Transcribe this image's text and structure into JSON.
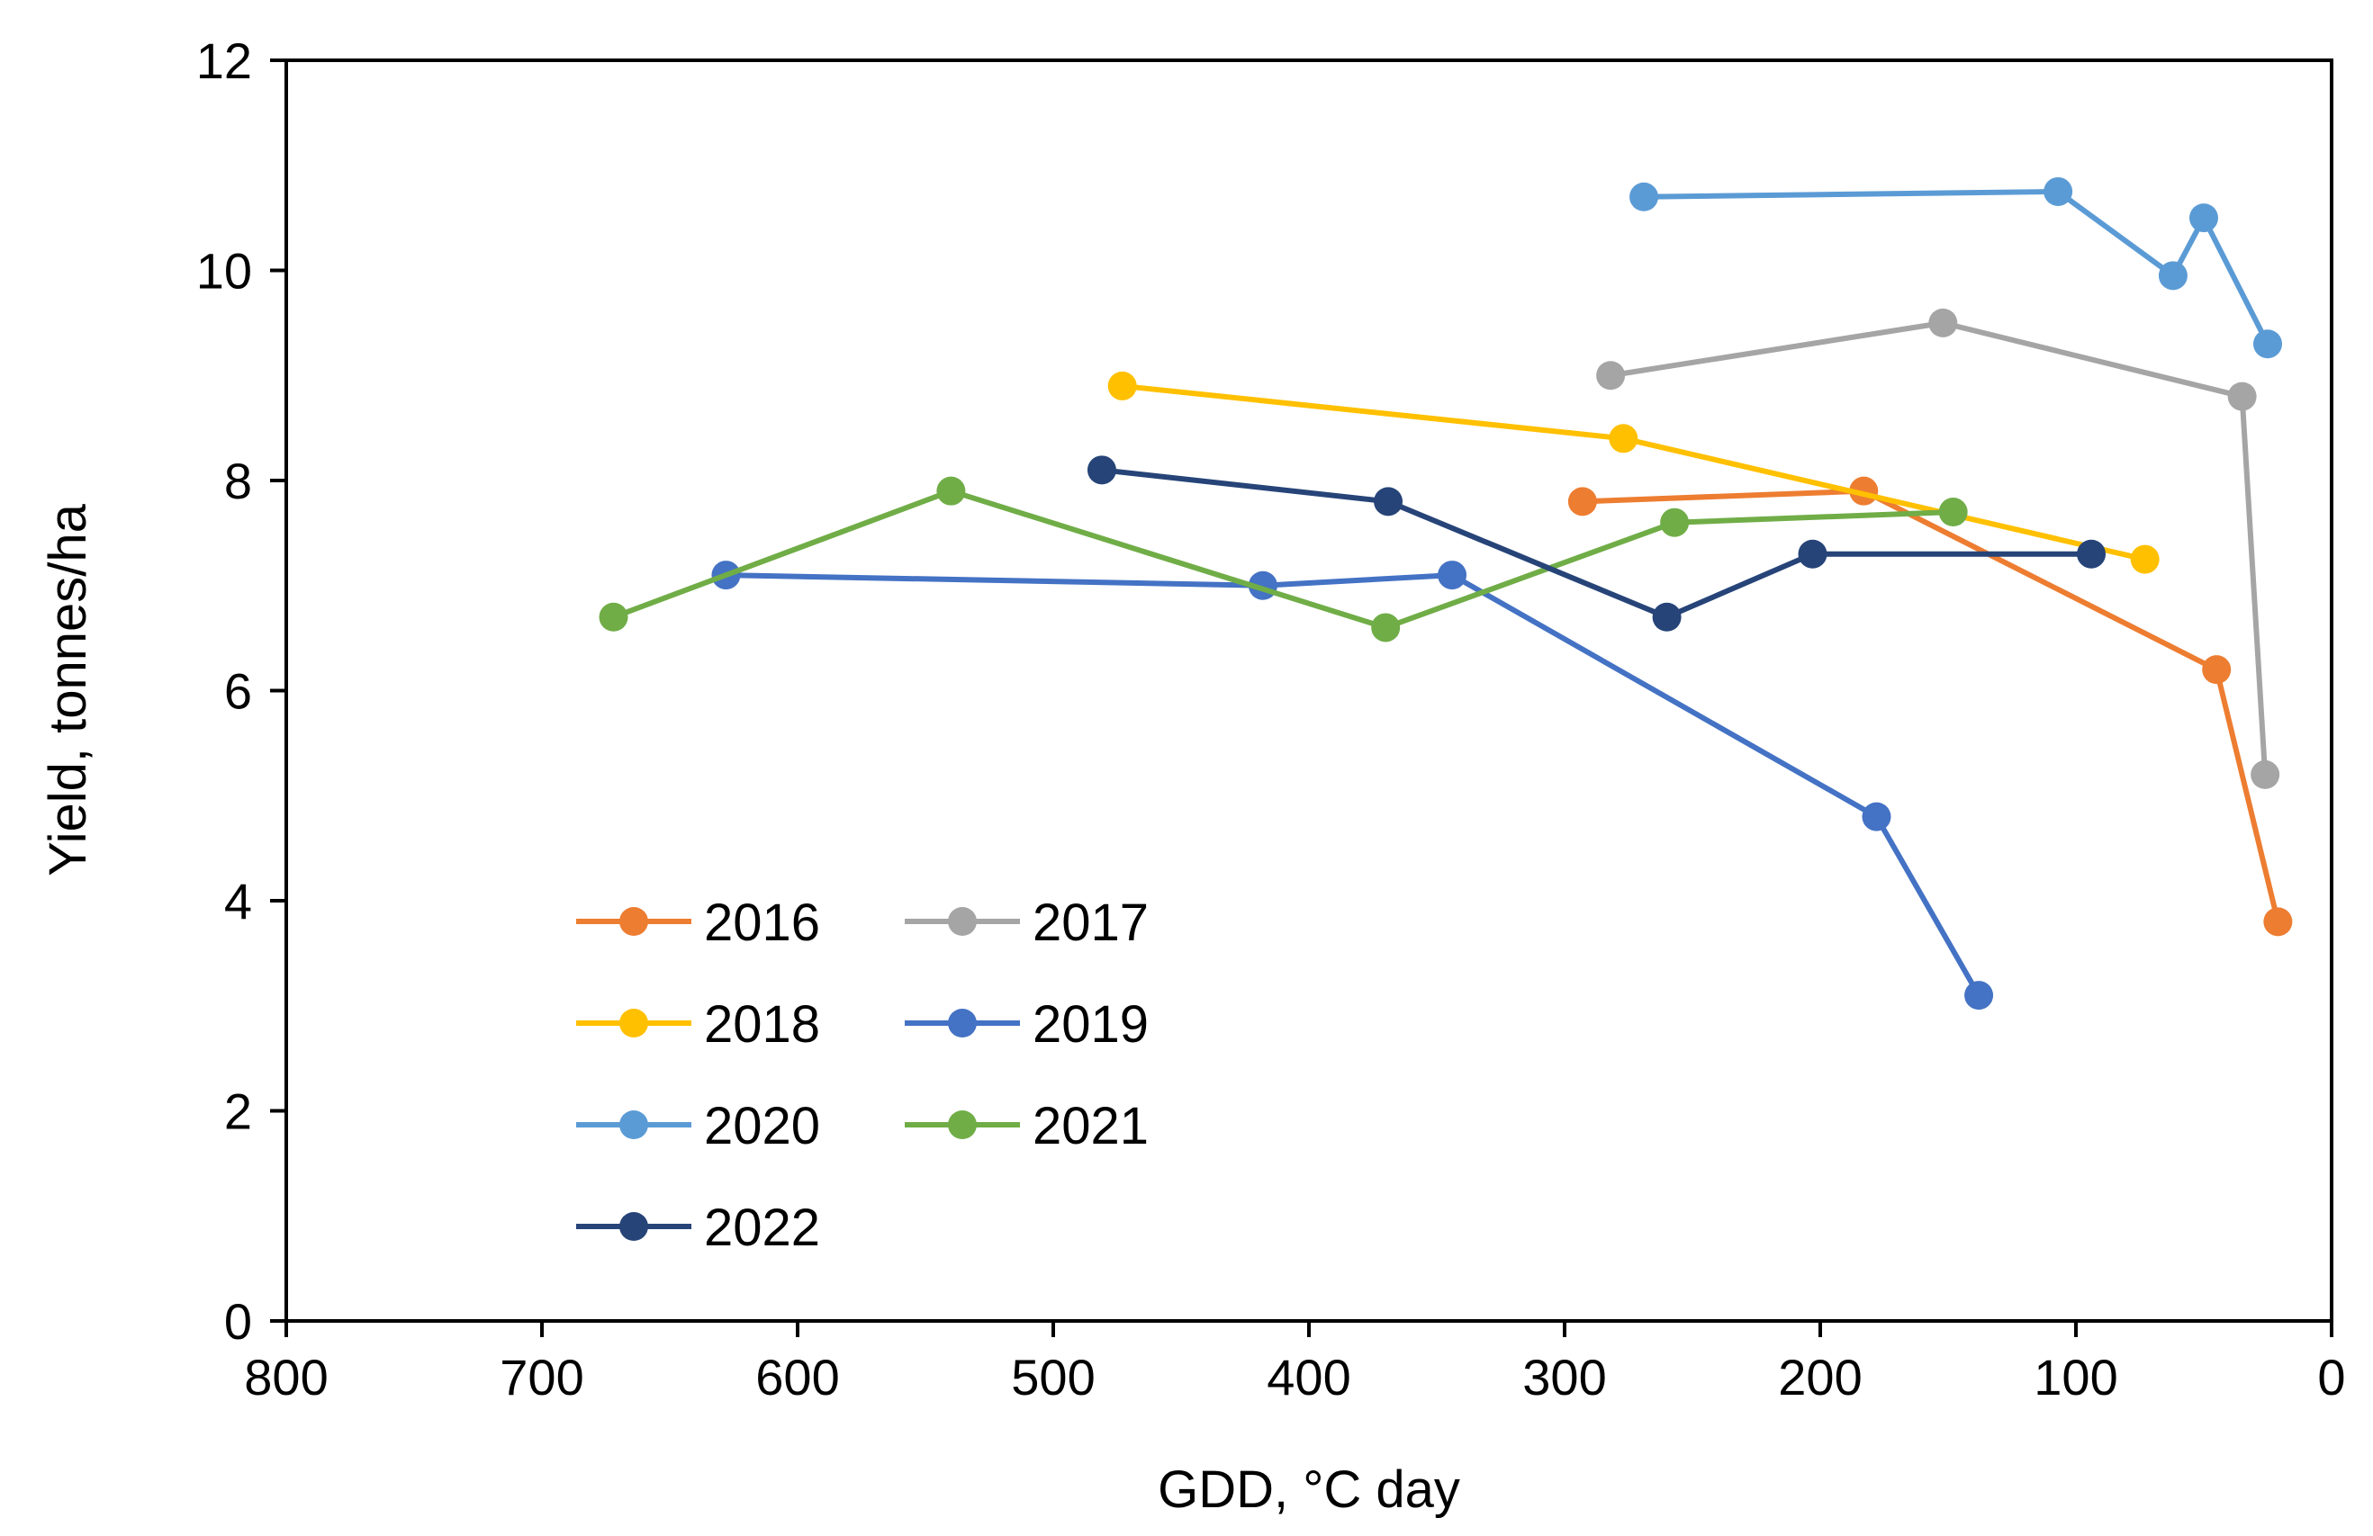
{
  "chart_data": {
    "type": "line",
    "xlabel": "GDD,  °C day",
    "ylabel": "Yield,  tonnes/ha",
    "xlim": [
      800,
      0
    ],
    "ylim": [
      0,
      12
    ],
    "xticks": [
      800,
      700,
      600,
      500,
      400,
      300,
      200,
      100,
      0
    ],
    "yticks": [
      0,
      2,
      4,
      6,
      8,
      10,
      12
    ],
    "grid": false,
    "legend_position": "bottom-left",
    "series": [
      {
        "name": "2016",
        "color": "#ED7D31",
        "x": [
          293,
          183,
          45,
          21
        ],
        "y": [
          7.8,
          7.9,
          6.2,
          3.8
        ]
      },
      {
        "name": "2017",
        "color": "#A5A5A5",
        "x": [
          282,
          152,
          35,
          26
        ],
        "y": [
          9.0,
          9.5,
          8.8,
          5.2
        ]
      },
      {
        "name": "2018",
        "color": "#FFC000",
        "x": [
          473,
          277,
          73
        ],
        "y": [
          8.9,
          8.4,
          7.25
        ]
      },
      {
        "name": "2019",
        "color": "#4472C4",
        "x": [
          628,
          418,
          344,
          178,
          138
        ],
        "y": [
          7.1,
          7.0,
          7.1,
          4.8,
          3.1
        ]
      },
      {
        "name": "2020",
        "color": "#5B9BD5",
        "x": [
          269,
          107,
          62,
          50,
          25
        ],
        "y": [
          10.7,
          10.75,
          9.95,
          10.5,
          9.3
        ]
      },
      {
        "name": "2021",
        "color": "#70AD47",
        "x": [
          672,
          540,
          370,
          257,
          148
        ],
        "y": [
          6.7,
          7.9,
          6.6,
          7.6,
          7.7
        ]
      },
      {
        "name": "2022",
        "color": "#264478",
        "x": [
          481,
          369,
          260,
          203,
          94
        ],
        "y": [
          8.1,
          7.8,
          6.7,
          7.3,
          7.3
        ]
      }
    ]
  }
}
